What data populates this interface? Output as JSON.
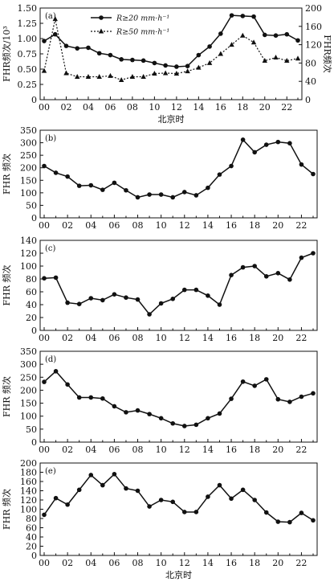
{
  "chart_data": [
    {
      "panel": "(a)",
      "type": "line",
      "x": [
        "00",
        "01",
        "02",
        "03",
        "04",
        "05",
        "06",
        "07",
        "08",
        "09",
        "10",
        "11",
        "12",
        "13",
        "14",
        "15",
        "16",
        "17",
        "18",
        "19",
        "20",
        "21",
        "22",
        "23"
      ],
      "xticks": [
        "00",
        "02",
        "04",
        "06",
        "08",
        "10",
        "12",
        "14",
        "16",
        "18",
        "20",
        "22"
      ],
      "xlabel": "北京时",
      "ylabel": "FHR频次/10³",
      "ylabel_right": "FHR频次",
      "ylim": [
        0,
        1.5
      ],
      "yticks": [
        "0",
        "0.25",
        "0.50",
        "0.75",
        "1.00",
        "1.25",
        "1.50"
      ],
      "ylim_right": [
        0,
        200
      ],
      "yticks_right": [
        "0",
        "40",
        "80",
        "120",
        "160",
        "200"
      ],
      "legend_position": "top-center",
      "series": [
        {
          "name": "R≥20 mm·h⁻¹",
          "axis": "left",
          "marker": "circle",
          "style": "solid",
          "values": [
            0.96,
            1.07,
            0.88,
            0.84,
            0.85,
            0.76,
            0.73,
            0.66,
            0.65,
            0.64,
            0.6,
            0.56,
            0.54,
            0.55,
            0.73,
            0.87,
            1.08,
            1.38,
            1.37,
            1.36,
            1.06,
            1.05,
            1.07,
            0.97
          ]
        },
        {
          "name": "R≥50 mm·h⁻¹",
          "axis": "right",
          "marker": "triangle",
          "style": "dotted",
          "values": [
            63,
            176,
            58,
            50,
            50,
            50,
            52,
            43,
            50,
            50,
            57,
            58,
            57,
            62,
            70,
            80,
            100,
            120,
            140,
            125,
            85,
            92,
            85,
            90
          ]
        }
      ]
    },
    {
      "panel": "(b)",
      "type": "line",
      "x": [
        "00",
        "01",
        "02",
        "03",
        "04",
        "05",
        "06",
        "07",
        "08",
        "09",
        "10",
        "11",
        "12",
        "13",
        "14",
        "15",
        "16",
        "17",
        "18",
        "19",
        "20",
        "21",
        "22",
        "23"
      ],
      "xticks": [
        "00",
        "02",
        "04",
        "06",
        "08",
        "10",
        "12",
        "14",
        "16",
        "18",
        "20",
        "22"
      ],
      "ylabel": "FHR 频次",
      "ylim": [
        0,
        350
      ],
      "yticks": [
        "0",
        "50",
        "100",
        "150",
        "200",
        "250",
        "300",
        "350"
      ],
      "values": [
        207,
        180,
        165,
        128,
        130,
        112,
        140,
        110,
        82,
        93,
        93,
        82,
        103,
        90,
        120,
        173,
        207,
        312,
        262,
        292,
        303,
        298,
        213,
        175
      ]
    },
    {
      "panel": "(c)",
      "type": "line",
      "x": [
        "00",
        "01",
        "02",
        "03",
        "04",
        "05",
        "06",
        "07",
        "08",
        "09",
        "10",
        "11",
        "12",
        "13",
        "14",
        "15",
        "16",
        "17",
        "18",
        "19",
        "20",
        "21",
        "22",
        "23"
      ],
      "xticks": [
        "00",
        "02",
        "04",
        "06",
        "08",
        "10",
        "12",
        "14",
        "16",
        "18",
        "20",
        "22"
      ],
      "ylabel": "FHR 频次",
      "ylim": [
        0,
        140
      ],
      "yticks": [
        "0",
        "20",
        "40",
        "60",
        "80",
        "100",
        "120",
        "140"
      ],
      "values": [
        81,
        82,
        43,
        41,
        50,
        47,
        56,
        51,
        48,
        25,
        42,
        49,
        63,
        63,
        54,
        40,
        86,
        98,
        100,
        84,
        89,
        79,
        113,
        120
      ]
    },
    {
      "panel": "(d)",
      "type": "line",
      "x": [
        "00",
        "01",
        "02",
        "03",
        "04",
        "05",
        "06",
        "07",
        "08",
        "09",
        "10",
        "11",
        "12",
        "13",
        "14",
        "15",
        "16",
        "17",
        "18",
        "19",
        "20",
        "21",
        "22",
        "23"
      ],
      "xticks": [
        "00",
        "02",
        "04",
        "06",
        "08",
        "10",
        "12",
        "14",
        "16",
        "18",
        "20",
        "22"
      ],
      "ylabel": "FHR 频次",
      "ylim": [
        0,
        350
      ],
      "yticks": [
        "0",
        "50",
        "100",
        "150",
        "200",
        "250",
        "300",
        "350"
      ],
      "values": [
        232,
        273,
        222,
        172,
        172,
        168,
        138,
        115,
        122,
        108,
        92,
        72,
        62,
        67,
        92,
        110,
        167,
        233,
        217,
        242,
        165,
        155,
        175,
        188
      ]
    },
    {
      "panel": "(e)",
      "type": "line",
      "x": [
        "00",
        "01",
        "02",
        "03",
        "04",
        "05",
        "06",
        "07",
        "08",
        "09",
        "10",
        "11",
        "12",
        "13",
        "14",
        "15",
        "16",
        "17",
        "18",
        "19",
        "20",
        "21",
        "22",
        "23"
      ],
      "xticks": [
        "00",
        "02",
        "04",
        "06",
        "08",
        "10",
        "12",
        "14",
        "16",
        "18",
        "20",
        "22"
      ],
      "xlabel": "北京时",
      "ylabel": "FHR 频次",
      "ylim": [
        0,
        200
      ],
      "yticks": [
        "0",
        "20",
        "40",
        "60",
        "80",
        "100",
        "120",
        "140",
        "160",
        "180",
        "200"
      ],
      "values": [
        88,
        124,
        110,
        142,
        174,
        152,
        176,
        145,
        140,
        106,
        120,
        116,
        94,
        94,
        127,
        152,
        123,
        142,
        120,
        93,
        73,
        72,
        92,
        76
      ]
    }
  ]
}
